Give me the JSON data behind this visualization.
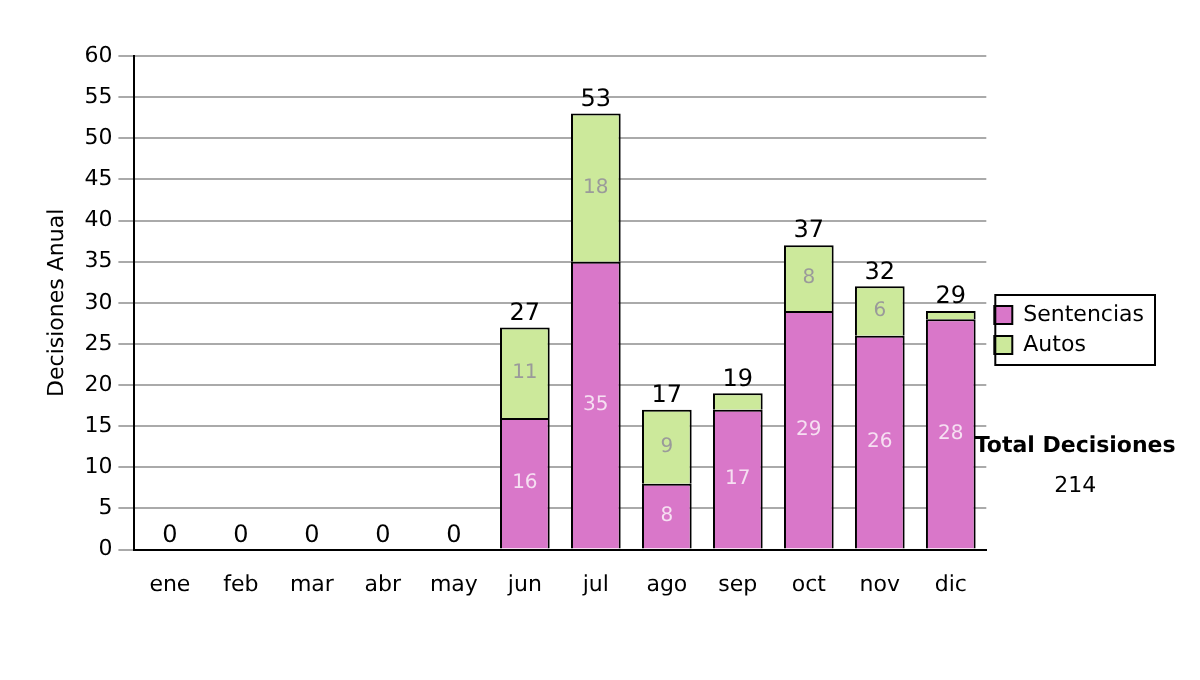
{
  "chart_data": {
    "type": "bar",
    "stacked": true,
    "ylabel": "Decisiones Anual",
    "categories": [
      "ene",
      "feb",
      "mar",
      "abr",
      "may",
      "jun",
      "jul",
      "ago",
      "sep",
      "oct",
      "nov",
      "dic"
    ],
    "series": [
      {
        "name": "Sentencias",
        "color": "#d977c9",
        "values": [
          0,
          0,
          0,
          0,
          0,
          16,
          35,
          8,
          17,
          29,
          26,
          28
        ],
        "value_labels": [
          null,
          null,
          null,
          null,
          null,
          "16",
          "35",
          "8",
          "17",
          "29",
          "26",
          "28"
        ]
      },
      {
        "name": "Autos",
        "color": "#cce99b",
        "values": [
          0,
          0,
          0,
          0,
          0,
          11,
          18,
          9,
          2,
          8,
          6,
          1
        ],
        "value_labels": [
          null,
          null,
          null,
          null,
          null,
          "11",
          "18",
          "9",
          null,
          "8",
          "6",
          null
        ]
      }
    ],
    "totals": [
      "0",
      "0",
      "0",
      "0",
      "0",
      "27",
      "53",
      "17",
      "19",
      "37",
      "32",
      "29"
    ],
    "ylim": [
      0,
      60
    ],
    "yticks": [
      0,
      5,
      10,
      15,
      20,
      25,
      30,
      35,
      40,
      45,
      50,
      55,
      60
    ],
    "grid": "y",
    "legend": "right",
    "annotations": [
      "Total Decisiones",
      "214"
    ]
  }
}
